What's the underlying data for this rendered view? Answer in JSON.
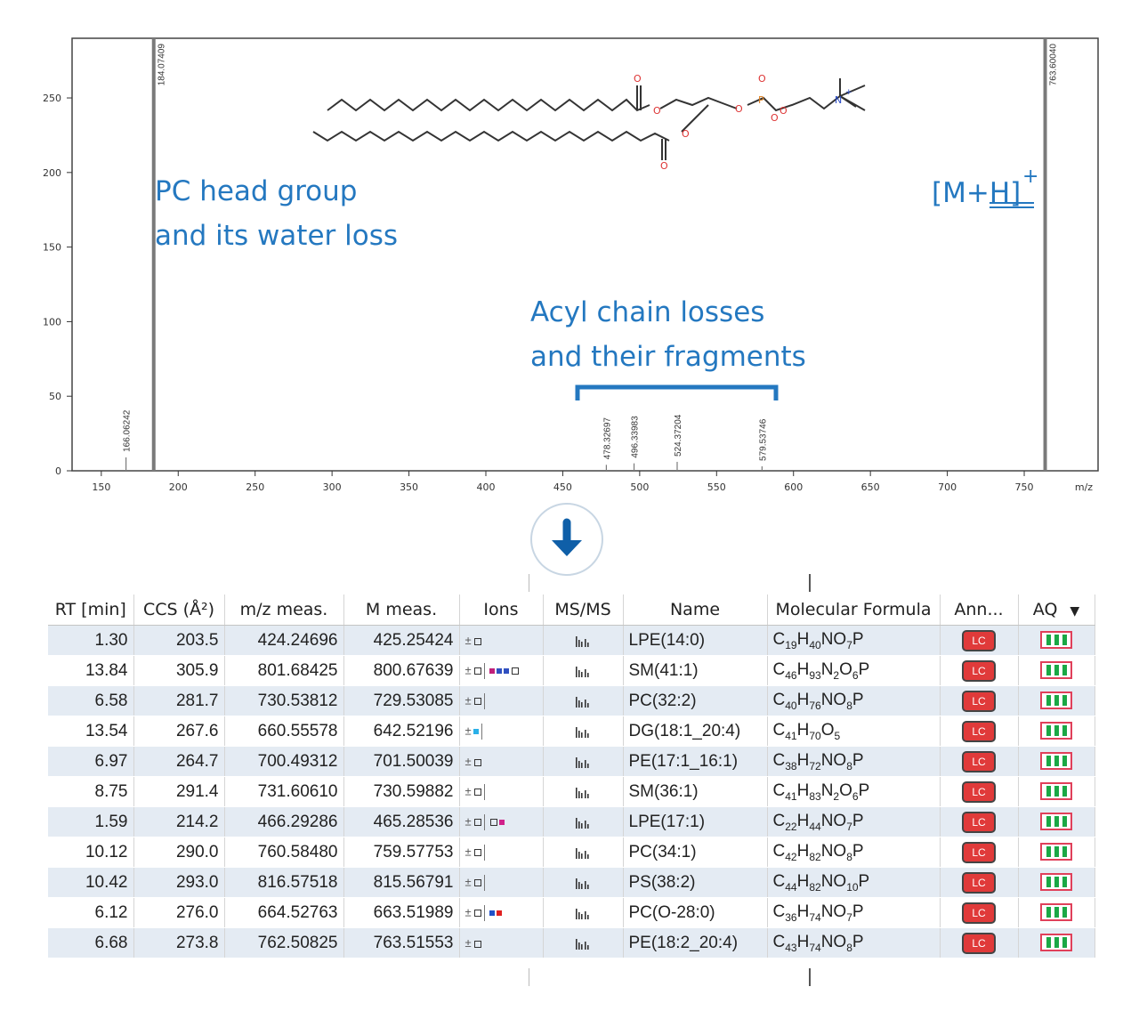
{
  "spectrum": {
    "x_axis_label": "m/z",
    "x_ticks": [
      150,
      200,
      250,
      300,
      350,
      400,
      450,
      500,
      550,
      600,
      650,
      700,
      750
    ],
    "y_ticks": [
      0,
      50,
      100,
      150,
      200,
      250
    ],
    "peaks": [
      {
        "mz": 166.06242,
        "label": "166.06242",
        "intensity": 9
      },
      {
        "mz": 184.07409,
        "label": "184.07409",
        "intensity": 290
      },
      {
        "mz": 478.32697,
        "label": "478.32697",
        "intensity": 4
      },
      {
        "mz": 496.33983,
        "label": "496.33983",
        "intensity": 5
      },
      {
        "mz": 524.37204,
        "label": "524.37204",
        "intensity": 6
      },
      {
        "mz": 579.53746,
        "label": "579.53746",
        "intensity": 3
      },
      {
        "mz": 763.6004,
        "label": "763.60040",
        "intensity": 290
      }
    ],
    "annotations": {
      "pc_head_line1": "PC head group",
      "pc_head_line2": "and its water loss",
      "acyl_line1": "Acyl chain losses",
      "acyl_line2": "and their fragments",
      "precursor": "[M+H]",
      "precursor_charge": "+"
    },
    "colors": {
      "annotation": "#2478c0",
      "peak": "#7a7a7a",
      "axis": "#333333"
    }
  },
  "table": {
    "columns": [
      "RT [min]",
      "CCS (Å²)",
      "m/z meas.",
      "M meas.",
      "Ions",
      "MS/MS",
      "Name",
      "Molecular Formula",
      "Ann...",
      "AQ"
    ],
    "sort_icon": "triangle-down-icon",
    "badge_label": "LC",
    "rows": [
      {
        "rt": "1.30",
        "ccs": "203.5",
        "mz": "424.24696",
        "m": "425.25424",
        "ions": "plus-square",
        "name": "LPE(14:0)",
        "formula": [
          [
            "C",
            ""
          ],
          [
            "19",
            "s"
          ],
          [
            "H",
            ""
          ],
          [
            "40",
            "s"
          ],
          [
            "NO",
            ""
          ],
          [
            "7",
            "s"
          ],
          [
            "P",
            ""
          ]
        ]
      },
      {
        "rt": "13.84",
        "ccs": "305.9",
        "mz": "801.68425",
        "m": "800.67639",
        "ions": "plus-square-multi",
        "name": "SM(41:1)",
        "formula": [
          [
            "C",
            ""
          ],
          [
            "46",
            "s"
          ],
          [
            "H",
            ""
          ],
          [
            "93",
            "s"
          ],
          [
            "N",
            ""
          ],
          [
            "2",
            "s"
          ],
          [
            "O",
            ""
          ],
          [
            "6",
            "s"
          ],
          [
            "P",
            ""
          ]
        ]
      },
      {
        "rt": "6.58",
        "ccs": "281.7",
        "mz": "730.53812",
        "m": "729.53085",
        "ions": "plus-square-bar",
        "name": "PC(32:2)",
        "formula": [
          [
            "C",
            ""
          ],
          [
            "40",
            "s"
          ],
          [
            "H",
            ""
          ],
          [
            "76",
            "s"
          ],
          [
            "NO",
            ""
          ],
          [
            "8",
            "s"
          ],
          [
            "P",
            ""
          ]
        ]
      },
      {
        "rt": "13.54",
        "ccs": "267.6",
        "mz": "660.55578",
        "m": "642.52196",
        "ions": "plus-cyan-bar",
        "name": "DG(18:1_20:4)",
        "formula": [
          [
            "C",
            ""
          ],
          [
            "41",
            "s"
          ],
          [
            "H",
            ""
          ],
          [
            "70",
            "s"
          ],
          [
            "O",
            ""
          ],
          [
            "5",
            "s"
          ]
        ]
      },
      {
        "rt": "6.97",
        "ccs": "264.7",
        "mz": "700.49312",
        "m": "701.50039",
        "ions": "plus-square",
        "name": "PE(17:1_16:1)",
        "formula": [
          [
            "C",
            ""
          ],
          [
            "38",
            "s"
          ],
          [
            "H",
            ""
          ],
          [
            "72",
            "s"
          ],
          [
            "NO",
            ""
          ],
          [
            "8",
            "s"
          ],
          [
            "P",
            ""
          ]
        ]
      },
      {
        "rt": "8.75",
        "ccs": "291.4",
        "mz": "731.60610",
        "m": "730.59882",
        "ions": "plus-square-bar",
        "name": "SM(36:1)",
        "formula": [
          [
            "C",
            ""
          ],
          [
            "41",
            "s"
          ],
          [
            "H",
            ""
          ],
          [
            "83",
            "s"
          ],
          [
            "N",
            ""
          ],
          [
            "2",
            "s"
          ],
          [
            "O",
            ""
          ],
          [
            "6",
            "s"
          ],
          [
            "P",
            ""
          ]
        ]
      },
      {
        "rt": "1.59",
        "ccs": "214.2",
        "mz": "466.29286",
        "m": "465.28536",
        "ions": "plus-square-pink",
        "name": "LPE(17:1)",
        "formula": [
          [
            "C",
            ""
          ],
          [
            "22",
            "s"
          ],
          [
            "H",
            ""
          ],
          [
            "44",
            "s"
          ],
          [
            "NO",
            ""
          ],
          [
            "7",
            "s"
          ],
          [
            "P",
            ""
          ]
        ]
      },
      {
        "rt": "10.12",
        "ccs": "290.0",
        "mz": "760.58480",
        "m": "759.57753",
        "ions": "plus-square-bar",
        "name": "PC(34:1)",
        "formula": [
          [
            "C",
            ""
          ],
          [
            "42",
            "s"
          ],
          [
            "H",
            ""
          ],
          [
            "82",
            "s"
          ],
          [
            "NO",
            ""
          ],
          [
            "8",
            "s"
          ],
          [
            "P",
            ""
          ]
        ]
      },
      {
        "rt": "10.42",
        "ccs": "293.0",
        "mz": "816.57518",
        "m": "815.56791",
        "ions": "plus-square-bar",
        "name": "PS(38:2)",
        "formula": [
          [
            "C",
            ""
          ],
          [
            "44",
            "s"
          ],
          [
            "H",
            ""
          ],
          [
            "82",
            "s"
          ],
          [
            "NO",
            ""
          ],
          [
            "10",
            "s"
          ],
          [
            "P",
            ""
          ]
        ]
      },
      {
        "rt": "6.12",
        "ccs": "276.0",
        "mz": "664.52763",
        "m": "663.51989",
        "ions": "plus-square-bluered",
        "name": "PC(O-28:0)",
        "formula": [
          [
            "C",
            ""
          ],
          [
            "36",
            "s"
          ],
          [
            "H",
            ""
          ],
          [
            "74",
            "s"
          ],
          [
            "NO",
            ""
          ],
          [
            "7",
            "s"
          ],
          [
            "P",
            ""
          ]
        ]
      },
      {
        "rt": "6.68",
        "ccs": "273.8",
        "mz": "762.50825",
        "m": "763.51553",
        "ions": "plus-square",
        "name": "PE(18:2_20:4)",
        "formula": [
          [
            "C",
            ""
          ],
          [
            "43",
            "s"
          ],
          [
            "H",
            ""
          ],
          [
            "74",
            "s"
          ],
          [
            "NO",
            ""
          ],
          [
            "8",
            "s"
          ],
          [
            "P",
            ""
          ]
        ]
      }
    ],
    "colors": {
      "row_alt": "#e4ebf3",
      "badge": "#e03a3a",
      "aq_green": "#1aa845",
      "aq_border": "#e0405a"
    }
  },
  "arrow_icon": "arrow-down-icon"
}
